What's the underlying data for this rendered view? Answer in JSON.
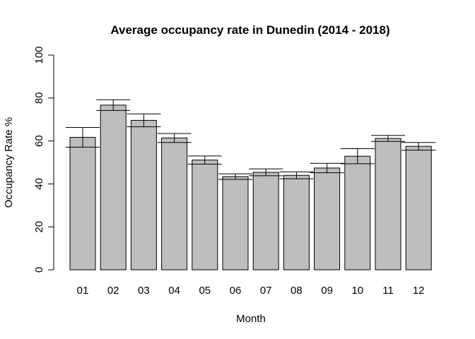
{
  "chart_data": {
    "type": "bar",
    "title": "Average occupancy rate in Dunedin (2014 - 2018)",
    "xlabel": "Month",
    "ylabel": "Occupancy Rate %",
    "categories": [
      "01",
      "02",
      "03",
      "04",
      "05",
      "06",
      "07",
      "08",
      "09",
      "10",
      "11",
      "12"
    ],
    "values": [
      61.7,
      76.7,
      69.6,
      61.4,
      51.1,
      43.4,
      45.4,
      44.0,
      47.4,
      52.9,
      61.2,
      57.5
    ],
    "error_upper": [
      66.3,
      79.2,
      72.6,
      63.5,
      53.0,
      44.7,
      47.0,
      45.6,
      49.6,
      56.4,
      62.6,
      59.3
    ],
    "error_lower": [
      57.1,
      74.2,
      66.6,
      59.3,
      49.2,
      42.1,
      43.8,
      42.4,
      45.2,
      49.4,
      59.8,
      55.7
    ],
    "ylim": [
      0,
      100
    ],
    "yticks": [
      0,
      20,
      40,
      60,
      80,
      100
    ],
    "grid": false,
    "colors": {
      "bar_fill": "#bebebe",
      "bar_stroke": "#000000",
      "error_bar": "#000000"
    }
  }
}
